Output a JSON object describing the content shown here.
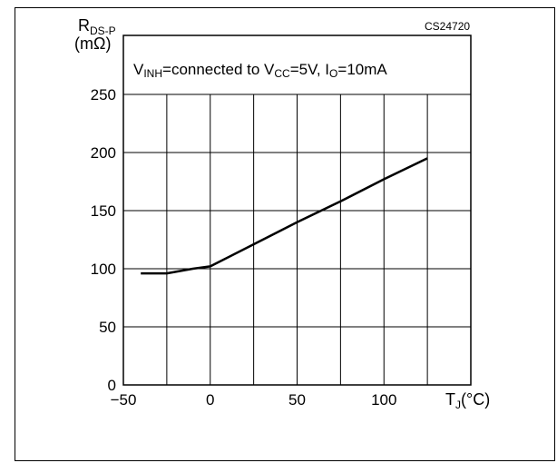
{
  "chart_data": {
    "type": "line",
    "chart_code": "CS24720",
    "ylabel_main": "R",
    "ylabel_sub": "DS-P",
    "ylabel_unit": "(mΩ)",
    "xlabel_main": "T",
    "xlabel_sub": "J",
    "xlabel_unit": "(°C)",
    "annotation": {
      "p1": "V",
      "p1_sub": "INH",
      "p2": "=connected to V",
      "p2_sub": "CC",
      "p3": "=5V, I",
      "p3_sub": "O",
      "p4": "=10mA"
    },
    "xlim": [
      -50,
      150
    ],
    "ylim": [
      0,
      250
    ],
    "x_ticks": [
      -50,
      0,
      50,
      100
    ],
    "x_tick_labels": [
      "−50",
      "0",
      "50",
      "100"
    ],
    "y_ticks": [
      0,
      50,
      100,
      150,
      200,
      250
    ],
    "y_tick_labels": [
      "0",
      "50",
      "100",
      "150",
      "200",
      "250"
    ],
    "x_grid": [
      -50,
      -25,
      0,
      25,
      50,
      75,
      100,
      125,
      150
    ],
    "y_grid": [
      0,
      50,
      100,
      150,
      200,
      250
    ],
    "grid": true,
    "series": [
      {
        "x": [
          -40,
          -25,
          -10,
          0,
          25,
          50,
          75,
          100,
          125
        ],
        "y": [
          96,
          96,
          100,
          102,
          121,
          140,
          158,
          177,
          195
        ]
      }
    ]
  }
}
